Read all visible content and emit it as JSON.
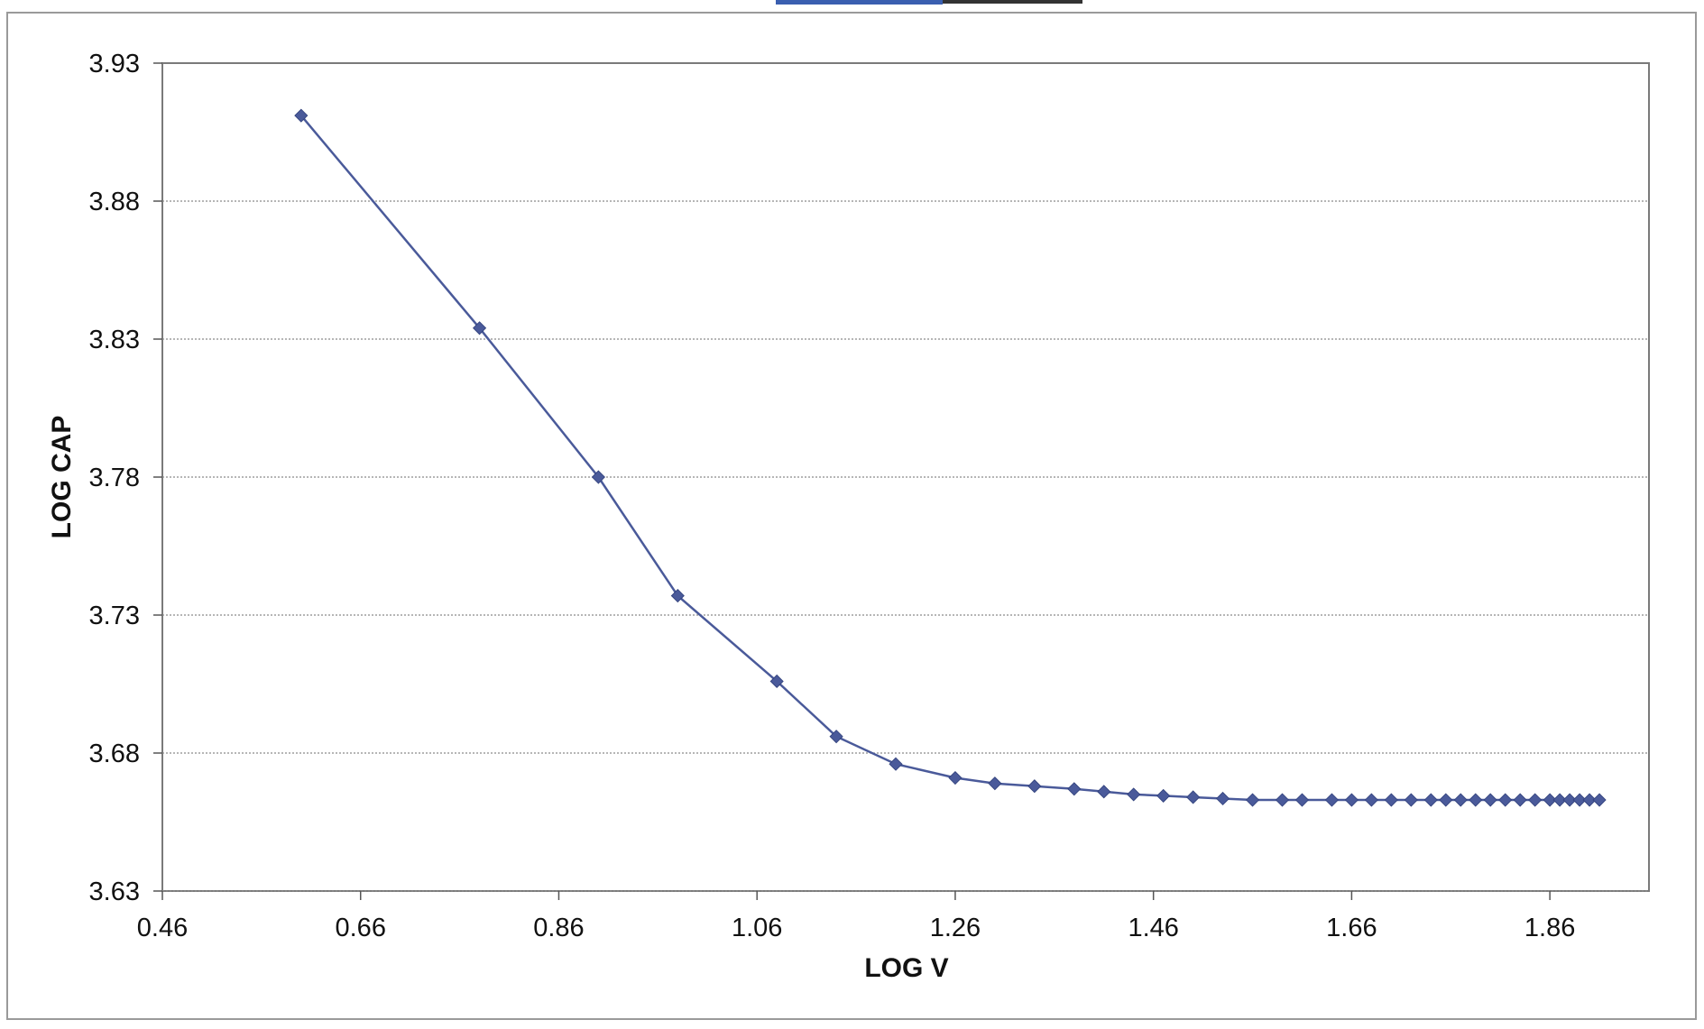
{
  "chart_data": {
    "type": "line",
    "title": "",
    "xlabel": "LOG V",
    "ylabel": "LOG CAP",
    "xlim": [
      0.46,
      1.96
    ],
    "ylim": [
      3.63,
      3.93
    ],
    "xticks": [
      "0.46",
      "0.66",
      "0.86",
      "1.06",
      "1.26",
      "1.46",
      "1.66",
      "1.86"
    ],
    "yticks": [
      "3.93",
      "3.88",
      "3.83",
      "3.78",
      "3.73",
      "3.68",
      "3.63"
    ],
    "grid": "horizontal",
    "legend": "none",
    "series": [
      {
        "color": "#4a5a9a",
        "marker": "diamond",
        "points": [
          [
            0.6,
            3.911
          ],
          [
            0.78,
            3.834
          ],
          [
            0.9,
            3.78
          ],
          [
            0.98,
            3.737
          ],
          [
            1.08,
            3.706
          ],
          [
            1.14,
            3.686
          ],
          [
            1.2,
            3.676
          ],
          [
            1.26,
            3.671
          ],
          [
            1.3,
            3.669
          ],
          [
            1.34,
            3.668
          ],
          [
            1.38,
            3.667
          ],
          [
            1.41,
            3.666
          ],
          [
            1.44,
            3.665
          ],
          [
            1.47,
            3.6645
          ],
          [
            1.5,
            3.664
          ],
          [
            1.53,
            3.6635
          ],
          [
            1.56,
            3.663
          ],
          [
            1.59,
            3.663
          ],
          [
            1.61,
            3.663
          ],
          [
            1.64,
            3.663
          ],
          [
            1.66,
            3.663
          ],
          [
            1.68,
            3.663
          ],
          [
            1.7,
            3.663
          ],
          [
            1.72,
            3.663
          ],
          [
            1.74,
            3.663
          ],
          [
            1.755,
            3.663
          ],
          [
            1.77,
            3.663
          ],
          [
            1.785,
            3.663
          ],
          [
            1.8,
            3.663
          ],
          [
            1.815,
            3.663
          ],
          [
            1.83,
            3.663
          ],
          [
            1.845,
            3.663
          ],
          [
            1.86,
            3.663
          ],
          [
            1.87,
            3.663
          ],
          [
            1.88,
            3.663
          ],
          [
            1.89,
            3.663
          ],
          [
            1.9,
            3.663
          ],
          [
            1.91,
            3.663
          ]
        ]
      }
    ]
  }
}
